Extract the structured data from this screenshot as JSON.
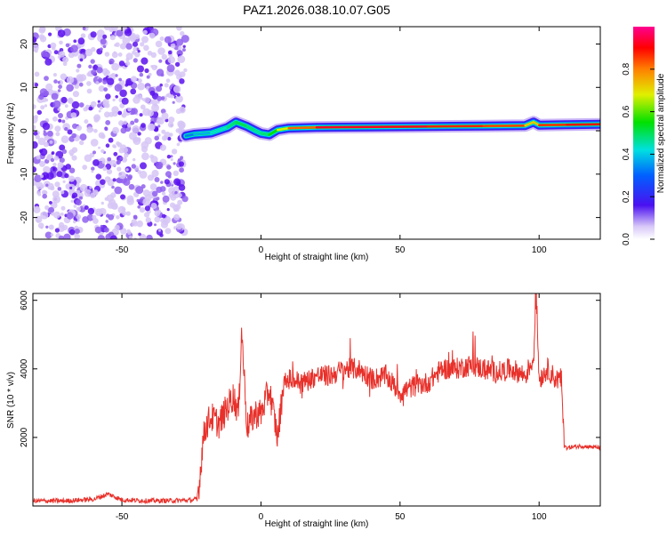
{
  "title": "PAZ1.2026.038.10.07.G05",
  "colors": {
    "background": "#ffffff",
    "snr_line": "#e8302a",
    "colormap_low": "#d8c8f8",
    "colormap_mid": "#4a10f0",
    "colormap_high": "#ff0090"
  },
  "chart_data": [
    {
      "type": "heatmap",
      "title": "PAZ1.2026.038.10.07.G05",
      "xlabel": "Height of straight line (km)",
      "ylabel": "Frequency (Hz)",
      "xlim": [
        -82,
        122
      ],
      "ylim": [
        -25,
        24
      ],
      "xticks": [
        -50,
        0,
        50,
        100
      ],
      "yticks": [
        -20,
        -10,
        0,
        10,
        20
      ],
      "colorbar": {
        "label": "Normalized spectral amplitude",
        "range": [
          0.0,
          1.0
        ],
        "ticks": [
          0.0,
          0.2,
          0.4,
          0.6,
          0.8
        ]
      },
      "noise_region_km": [
        -82,
        -27
      ],
      "ridge": {
        "x": [
          -27,
          -24,
          -18,
          -12,
          -9,
          -5,
          -2,
          0,
          3,
          6,
          10,
          20,
          40,
          60,
          80,
          95,
          98,
          100,
          110,
          122
        ],
        "freq": [
          -1.2,
          -0.8,
          -0.5,
          0.8,
          2.0,
          1.0,
          0.0,
          -0.6,
          -0.9,
          0.2,
          0.6,
          0.8,
          0.9,
          1.0,
          1.1,
          1.2,
          2.0,
          1.3,
          1.4,
          1.5
        ],
        "amplitude": [
          0.3,
          0.35,
          0.4,
          0.45,
          0.5,
          0.5,
          0.45,
          0.45,
          0.5,
          0.6,
          0.75,
          0.9,
          0.95,
          0.9,
          0.85,
          0.85,
          0.6,
          0.85,
          0.88,
          0.9
        ]
      }
    },
    {
      "type": "line",
      "xlabel": "Height of straight line (km)",
      "ylabel": "SNR (10 * v/v)",
      "xlim": [
        -82,
        122
      ],
      "ylim": [
        0,
        6200
      ],
      "xticks": [
        -50,
        0,
        50,
        100
      ],
      "yticks": [
        2000,
        4000,
        6000
      ],
      "series": [
        {
          "name": "SNR",
          "x": [
            -82,
            -70,
            -60,
            -55,
            -50,
            -40,
            -30,
            -25,
            -23,
            -22,
            -21,
            -20,
            -18,
            -15,
            -12,
            -10,
            -8,
            -7,
            -5,
            -2,
            0,
            3,
            6,
            8,
            10,
            15,
            20,
            25,
            30,
            35,
            40,
            45,
            50,
            55,
            60,
            65,
            70,
            75,
            80,
            85,
            90,
            95,
            98,
            99,
            100,
            103,
            106,
            108,
            109,
            110,
            115,
            122
          ],
          "y": [
            150,
            150,
            200,
            350,
            180,
            150,
            160,
            170,
            200,
            800,
            1800,
            2300,
            2600,
            2400,
            2900,
            3200,
            2700,
            5200,
            2300,
            2700,
            2700,
            3400,
            2000,
            3500,
            3700,
            3600,
            3800,
            3800,
            4000,
            4000,
            3700,
            3800,
            3300,
            3500,
            3600,
            4000,
            4000,
            4100,
            4000,
            3900,
            4000,
            3800,
            4300,
            6200,
            3700,
            4000,
            3700,
            3700,
            1750,
            1700,
            1750,
            1700
          ]
        }
      ]
    }
  ]
}
